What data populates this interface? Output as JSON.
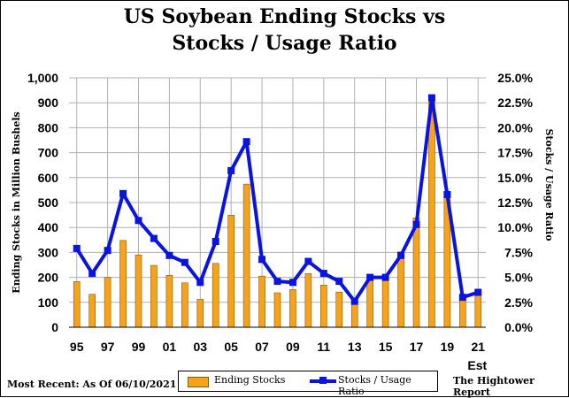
{
  "colors": {
    "bar": "#f7a21b",
    "bar_edge": "#8a5a00",
    "line": "#0a14e0",
    "grid": "#b0b0b0"
  },
  "chart_data": {
    "type": "bar+line",
    "title_line1": "US Soybean Ending Stocks vs",
    "title_line2": "Stocks / Usage Ratio",
    "ylabel_left": "Ending Stocks in Million  Bushels",
    "ylabel_right": "Stocks / Usage Ratio",
    "ylim_left": [
      0,
      1000
    ],
    "ylim_right": [
      0,
      25
    ],
    "yticks_left": [
      "0",
      "100",
      "200",
      "300",
      "400",
      "500",
      "600",
      "700",
      "800",
      "900",
      "1,000"
    ],
    "yticks_right": [
      "0.0%",
      "2.5%",
      "5.0%",
      "7.5%",
      "10.0%",
      "12.5%",
      "15.0%",
      "17.5%",
      "20.0%",
      "22.5%",
      "25.0%"
    ],
    "categories": [
      "95",
      "96",
      "97",
      "98",
      "99",
      "00",
      "01",
      "02",
      "03",
      "04",
      "05",
      "06",
      "07",
      "08",
      "09",
      "10",
      "11",
      "12",
      "13",
      "14",
      "15",
      "16",
      "17",
      "18",
      "19",
      "20",
      "21"
    ],
    "x_tick_labels": [
      "95",
      "97",
      "99",
      "01",
      "03",
      "05",
      "07",
      "09",
      "11",
      "13",
      "15",
      "17",
      "19",
      "21"
    ],
    "x_extra_label": "Est",
    "grid": true,
    "series": [
      {
        "name": "Ending Stocks",
        "type": "bar",
        "axis": "left",
        "values": [
          183,
          132,
          200,
          348,
          290,
          248,
          208,
          178,
          112,
          256,
          449,
          574,
          205,
          138,
          151,
          215,
          169,
          141,
          92,
          191,
          197,
          302,
          438,
          909,
          525,
          120,
          140
        ]
      },
      {
        "name": "Stocks / Usage Ratio",
        "type": "line",
        "axis": "right",
        "values": [
          7.9,
          5.4,
          7.7,
          13.4,
          10.7,
          8.9,
          7.2,
          6.5,
          4.5,
          8.6,
          15.7,
          18.6,
          6.8,
          4.6,
          4.5,
          6.6,
          5.4,
          4.6,
          2.6,
          5.0,
          5.0,
          7.2,
          10.3,
          23.0,
          13.3,
          3.0,
          3.5
        ]
      }
    ]
  },
  "footer": {
    "left": "Most Recent: As Of 06/10/2021",
    "right": "The Hightower Report"
  }
}
